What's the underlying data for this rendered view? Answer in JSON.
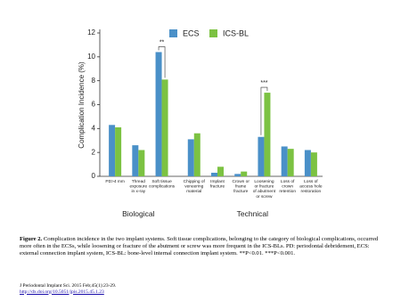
{
  "chart_data": {
    "type": "bar",
    "ylabel": "Complication Incidence (%)",
    "categories": [
      "PD>4 mm",
      "Thread\nexposure\nin x-ray",
      "Soft tissue\ncomplications",
      "Chipping of\nveneering\nmaterial",
      "Implant\nfracture",
      "Crown or\nframe\nfracture",
      "Loosening\nor fracture\nof abutment\nor screw",
      "Loss of\ncrown\nretention",
      "Loss of\naccess hole\nrestoration"
    ],
    "series": [
      {
        "name": "ECS",
        "color": "#4a90c8",
        "values": [
          4.3,
          2.6,
          10.4,
          3.1,
          0.3,
          0.2,
          3.3,
          2.5,
          2.2
        ]
      },
      {
        "name": "ICS-BL",
        "color": "#7cc242",
        "values": [
          4.1,
          2.2,
          8.1,
          3.6,
          0.8,
          0.4,
          7.0,
          2.3,
          2.0
        ]
      }
    ],
    "ylim": [
      0,
      12
    ],
    "yticks": [
      0,
      2,
      4,
      6,
      8,
      10,
      12
    ],
    "group_labels": [
      "Biological",
      "Technical"
    ],
    "annotations": [
      "**",
      "***"
    ]
  },
  "caption": {
    "label": "Figure 2.",
    "text": "Complication incidence in the two implant systems. Soft tissue complications, belonging to the category of biological complications, occurred more often in the ECSs, while loosening or fracture of the abutment or screw was more frequent in the ICS-BLs. PD: periodontal debridement, ECS: external connection implant system, ICS-BL: bone-level internal connection implant system. **P<0.01. ***P<0.001.",
    "citation": "J Periodontal Implant Sci. 2015 Feb;45(1):23-29.",
    "link": "http://dx.doi.org/10.5051/jpis.2015.45.1.23"
  }
}
